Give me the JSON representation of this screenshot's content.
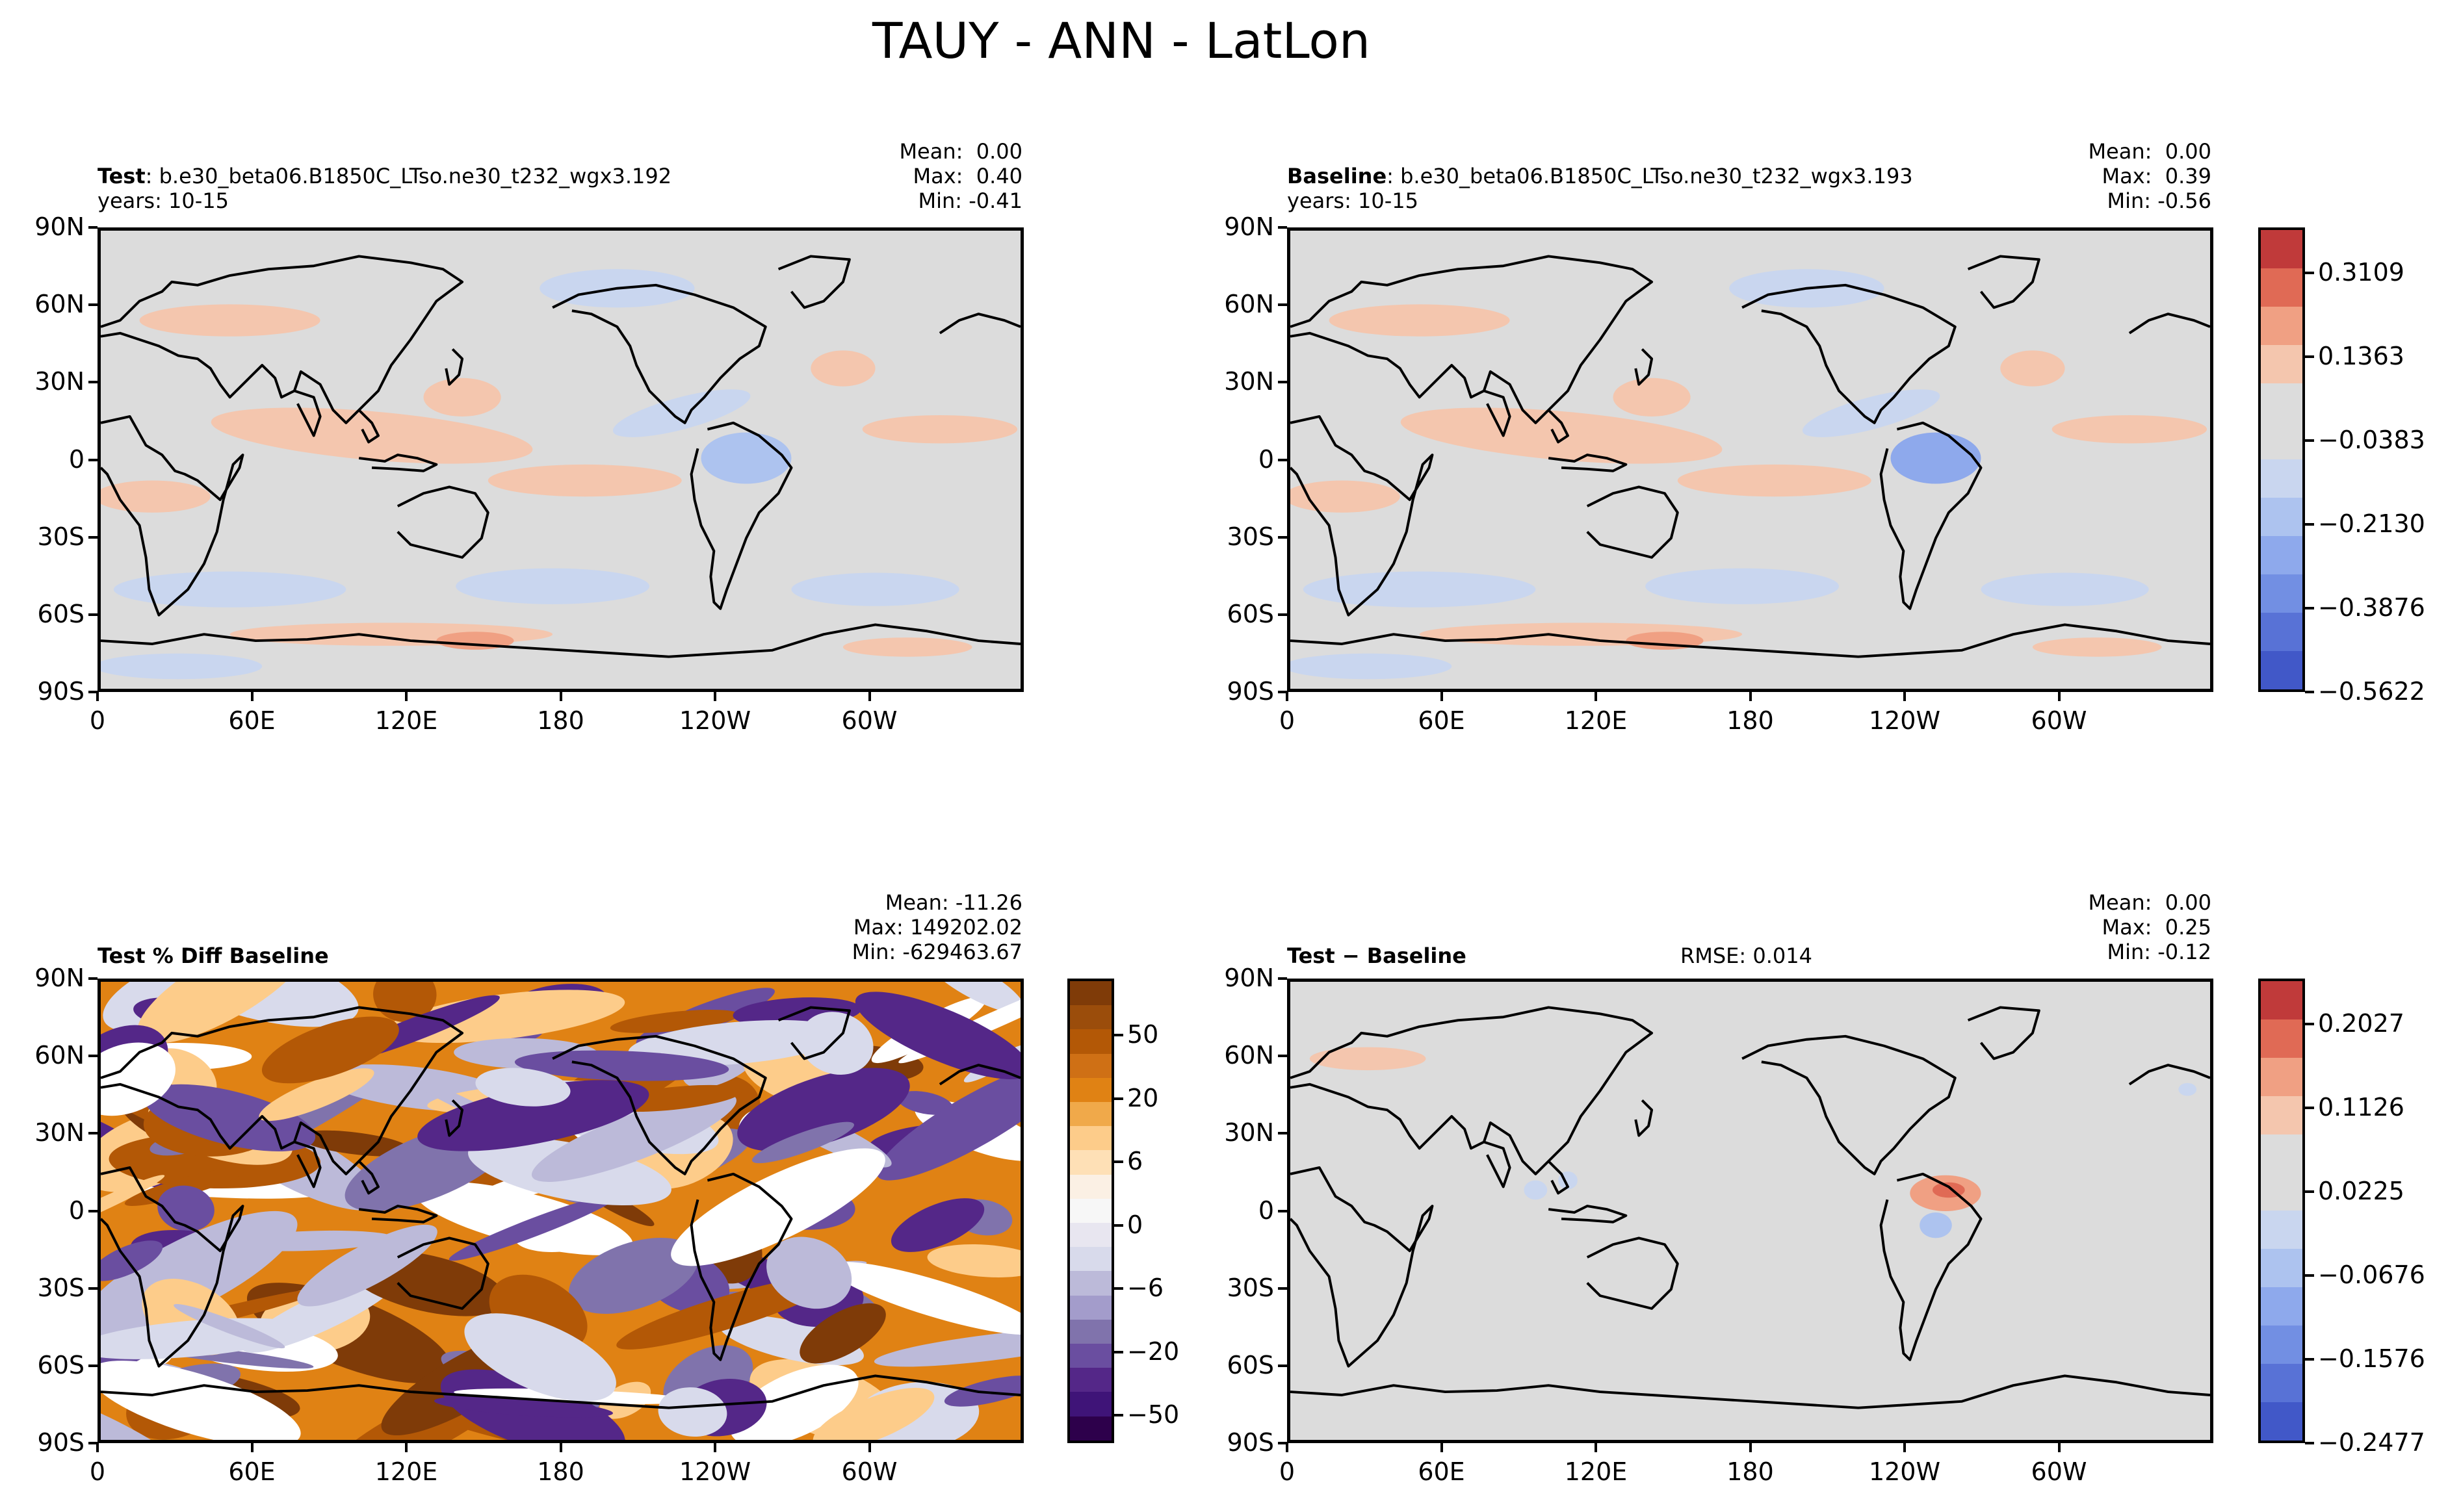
{
  "figure_title": "TAUY - ANN - LatLon",
  "lat_labels": [
    "90N",
    "60N",
    "30N",
    "0",
    "30S",
    "60S",
    "90S"
  ],
  "lon_labels": [
    "0",
    "60E",
    "120E",
    "180",
    "120W",
    "60W"
  ],
  "panels": [
    {
      "id": "test",
      "title_bold": "Test",
      "title_rest": ": b.e30_beta06.B1850C_LTso.ne30_t232_wgx3.192",
      "subtitle": "years: 10-15",
      "stats": {
        "mean": "Mean:  0.00",
        "max": "Max:  0.40",
        "min": "Min: -0.41"
      }
    },
    {
      "id": "baseline",
      "title_bold": "Baseline",
      "title_rest": ": b.e30_beta06.B1850C_LTso.ne30_t232_wgx3.193",
      "subtitle": "years: 10-15",
      "stats": {
        "mean": "Mean:  0.00",
        "max": "Max:  0.39",
        "min": "Min: -0.56"
      }
    },
    {
      "id": "pctdiff",
      "title_bold": "Test % Diff Baseline",
      "title_rest": "",
      "subtitle": "",
      "stats": {
        "mean": "Mean: -11.26",
        "max": "Max: 149202.02",
        "min": "Min: -629463.67"
      }
    },
    {
      "id": "diff",
      "title_bold": "Test − Baseline",
      "title_rest": "",
      "subtitle": "",
      "rmse": "RMSE: 0.014",
      "stats": {
        "mean": "Mean:  0.00",
        "max": "Max:  0.25",
        "min": "Min: -0.12"
      }
    }
  ],
  "colorbars": {
    "top": {
      "labels": [
        "0.3109",
        "0.1363",
        "−0.0383",
        "−0.2130",
        "−0.3876",
        "−0.5622"
      ],
      "colors": [
        "#c03a3a",
        "#e06a55",
        "#f0a083",
        "#f4c6ae",
        "#dcdcdc",
        "#dcdcdc",
        "#c9d6ef",
        "#adc3ef",
        "#8ea9ec",
        "#728fe3",
        "#5872d6",
        "#4158c8"
      ]
    },
    "pctdiff": {
      "labels": [
        "50",
        "20",
        "6",
        "0",
        "−6",
        "−20",
        "−50"
      ],
      "colors": [
        "#7f3b08",
        "#9b4d0b",
        "#b35806",
        "#cf7015",
        "#e08214",
        "#f0a94a",
        "#fdcc8a",
        "#fee0b6",
        "#fbf0e4",
        "#f7f7f7",
        "#e8e6f0",
        "#d8daeb",
        "#bcbad9",
        "#a39ccb",
        "#8073ac",
        "#6a4ea0",
        "#542788",
        "#3f1478",
        "#2d004b"
      ]
    },
    "diff": {
      "labels": [
        "0.2027",
        "0.1126",
        "0.0225",
        "−0.0676",
        "−0.1576",
        "−0.2477"
      ],
      "colors": [
        "#c03a3a",
        "#e06a55",
        "#f0a083",
        "#f4c6ae",
        "#dcdcdc",
        "#dcdcdc",
        "#c9d6ef",
        "#adc3ef",
        "#8ea9ec",
        "#728fe3",
        "#5872d6",
        "#4158c8"
      ]
    }
  },
  "chart_data": [
    {
      "type": "heatmap",
      "title": "Test",
      "xlabels": [
        "0",
        "60E",
        "120E",
        "180",
        "120W",
        "60W"
      ],
      "ylabels": [
        "90N",
        "60N",
        "30N",
        "0",
        "30S",
        "60S",
        "90S"
      ],
      "mean": 0.0,
      "max": 0.4,
      "min": -0.41
    },
    {
      "type": "heatmap",
      "title": "Baseline",
      "xlabels": [
        "0",
        "60E",
        "120E",
        "180",
        "120W",
        "60W"
      ],
      "ylabels": [
        "90N",
        "60N",
        "30N",
        "0",
        "30S",
        "60S",
        "90S"
      ],
      "mean": 0.0,
      "max": 0.39,
      "min": -0.56,
      "colorbar_ticks": [
        0.3109,
        0.1363,
        -0.0383,
        -0.213,
        -0.3876,
        -0.5622
      ]
    },
    {
      "type": "heatmap",
      "title": "Test % Diff Baseline",
      "xlabels": [
        "0",
        "60E",
        "120E",
        "180",
        "120W",
        "60W"
      ],
      "ylabels": [
        "90N",
        "60N",
        "30N",
        "0",
        "30S",
        "60S",
        "90S"
      ],
      "mean": -11.26,
      "max": 149202.02,
      "min": -629463.67,
      "colorbar_ticks": [
        50,
        20,
        6,
        0,
        -6,
        -20,
        -50
      ]
    },
    {
      "type": "heatmap",
      "title": "Test − Baseline",
      "xlabels": [
        "0",
        "60E",
        "120E",
        "180",
        "120W",
        "60W"
      ],
      "ylabels": [
        "90N",
        "60N",
        "30N",
        "0",
        "30S",
        "60S",
        "90S"
      ],
      "mean": 0.0,
      "max": 0.25,
      "min": -0.12,
      "rmse": 0.014,
      "colorbar_ticks": [
        0.2027,
        0.1126,
        0.0225,
        -0.0676,
        -0.1576,
        -0.2477
      ]
    }
  ]
}
